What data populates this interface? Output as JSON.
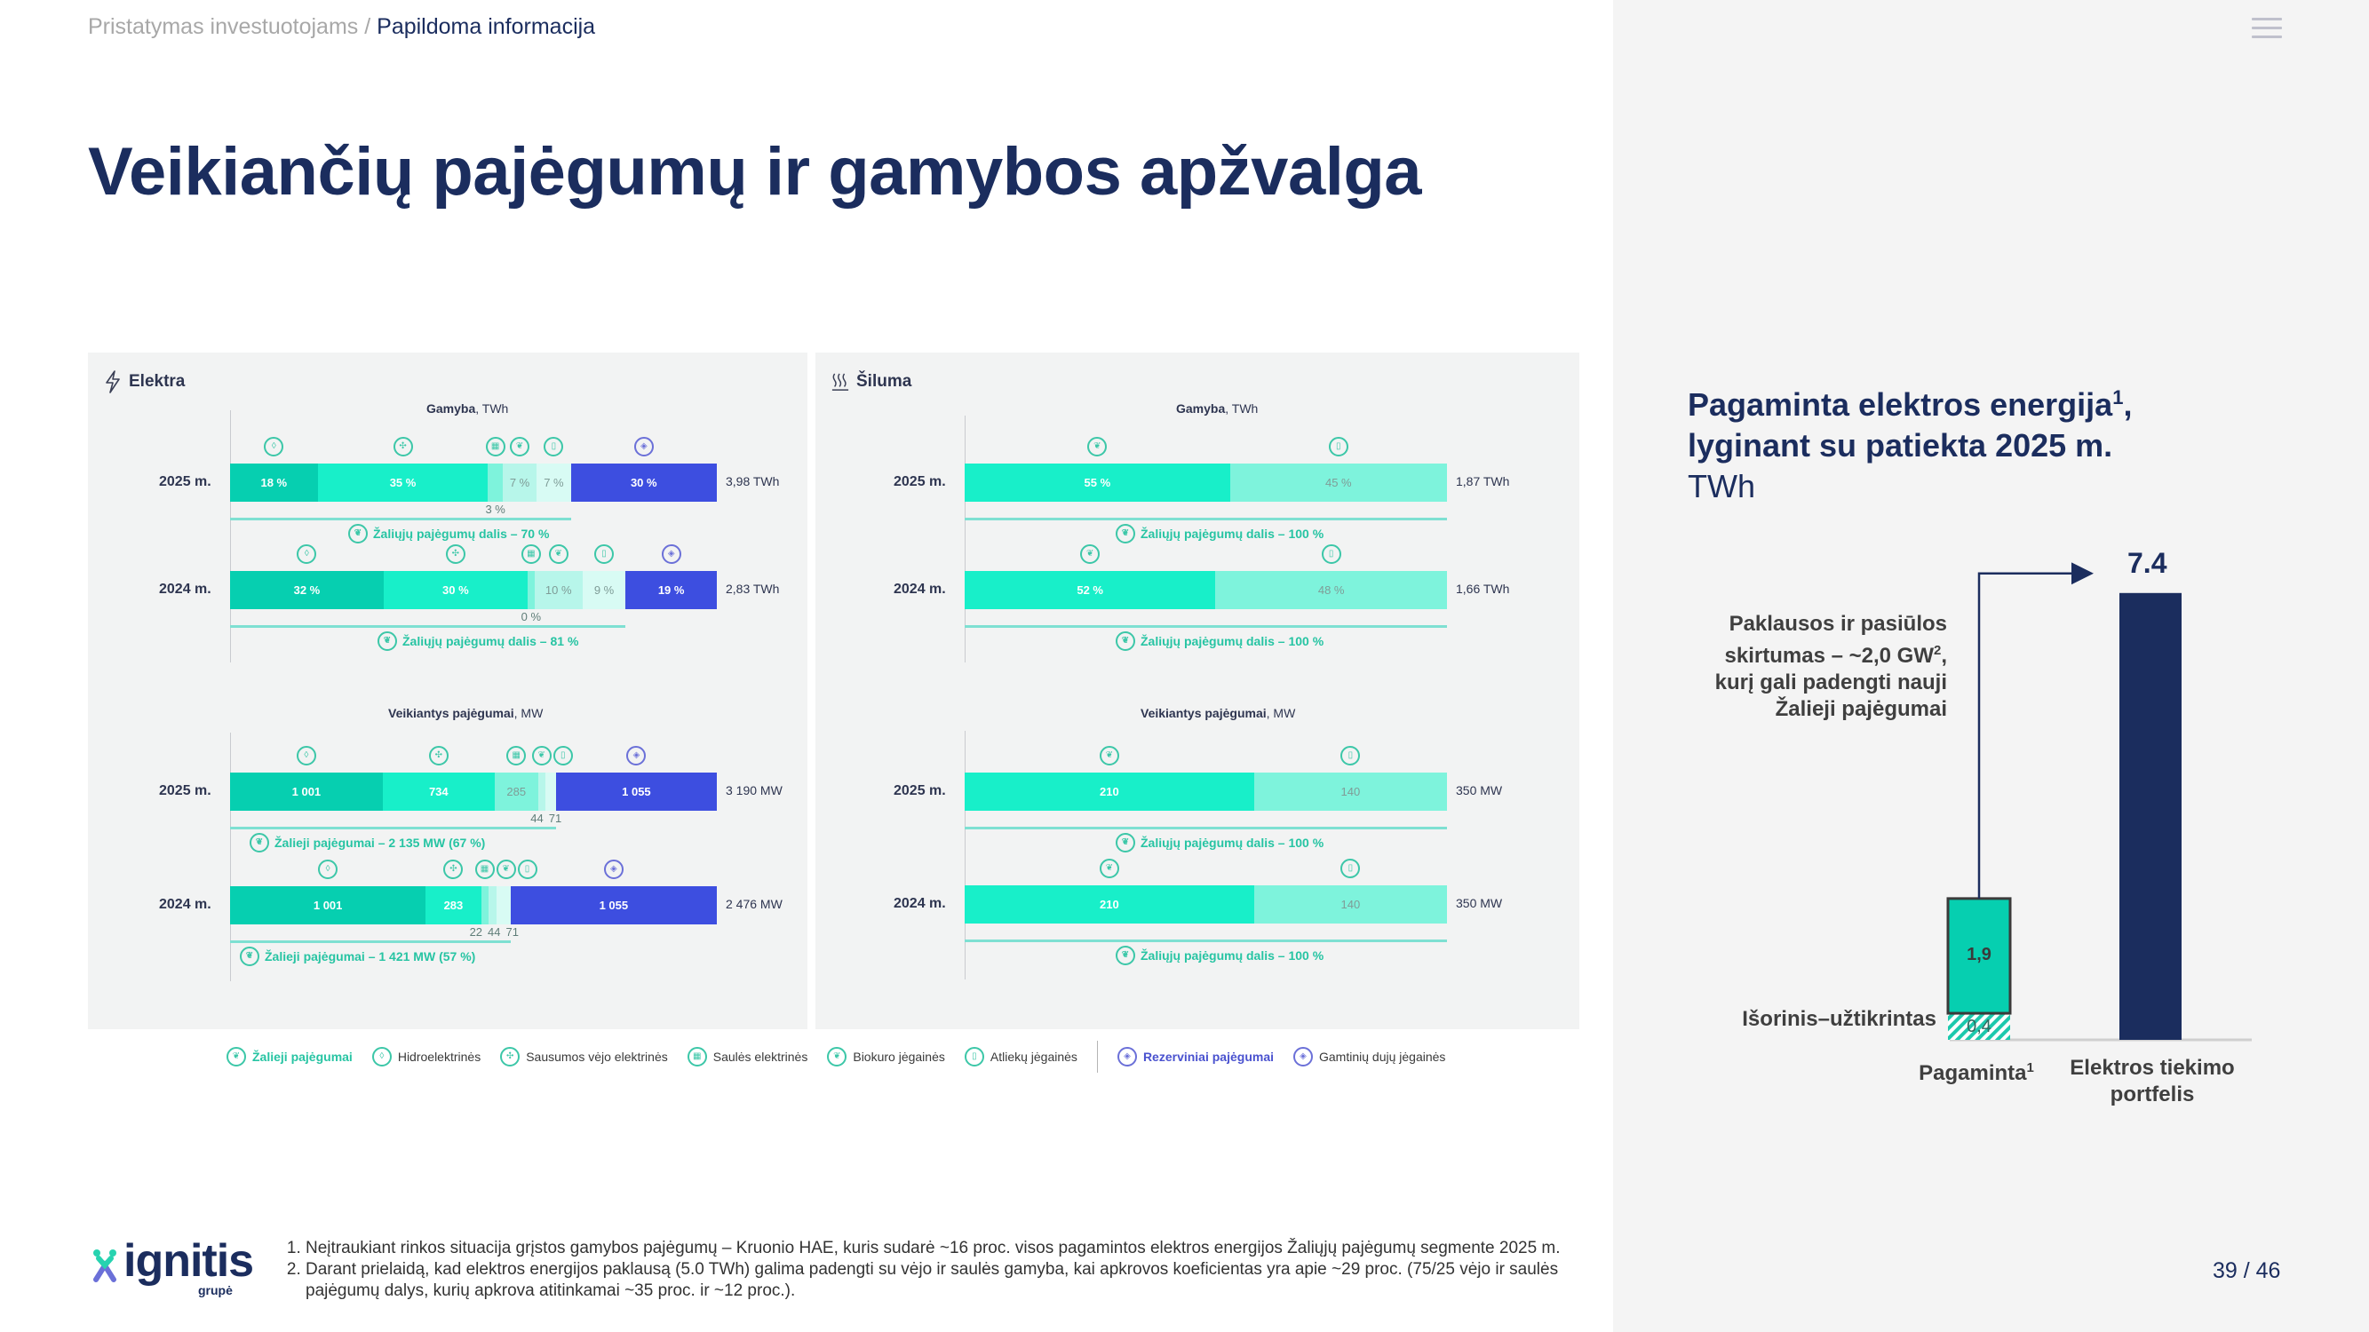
{
  "header": {
    "breadcrumb": [
      {
        "label": "Pristatymas investuotojams"
      },
      {
        "label": "Papildoma informacija"
      }
    ],
    "breadcrumb_separator": "/",
    "menu_icon": "hamburger-menu-icon"
  },
  "page_title": "Veikiančių pajėgumų ir gamybos apžvalga",
  "colors": {
    "navy": "#1b2d5e",
    "hydro": "#06cfb0",
    "wind": "#18efc9",
    "solar": "#7ef3dc",
    "biofuel": "#b7f6ea",
    "waste": "#d8fbf4",
    "gas": "#3d4ee0",
    "heat_bio": "#18efc9",
    "heat_waste": "#7ef3dc",
    "green_text": "#27c4a3"
  },
  "panels": {
    "elektra": {
      "title": "Elektra",
      "icon": "lightning-icon",
      "production": {
        "title": "Gamyba",
        "unit": ", TWh",
        "rows": [
          {
            "year": "2025 m.",
            "total": "3,98 TWh",
            "green_note": "Žaliųjų pajėgumų dalis – 70 %",
            "segments": [
              {
                "type": "hydro",
                "value": 18,
                "label": "18 %"
              },
              {
                "type": "wind",
                "value": 35,
                "label": "35 %"
              },
              {
                "type": "solar",
                "value": 3,
                "label": "3 %"
              },
              {
                "type": "biofuel",
                "value": 7,
                "label": "7 %"
              },
              {
                "type": "waste",
                "value": 7,
                "label": "7 %"
              },
              {
                "type": "gas",
                "value": 30,
                "label": "30 %"
              }
            ]
          },
          {
            "year": "2024 m.",
            "total": "2,83 TWh",
            "green_note": "Žaliųjų pajėgumų dalis – 81 %",
            "segments": [
              {
                "type": "hydro",
                "value": 32,
                "label": "32 %"
              },
              {
                "type": "wind",
                "value": 30,
                "label": "30 %"
              },
              {
                "type": "solar",
                "value": 0,
                "label": "0 %"
              },
              {
                "type": "biofuel",
                "value": 10,
                "label": "10 %"
              },
              {
                "type": "waste",
                "value": 9,
                "label": "9 %"
              },
              {
                "type": "gas",
                "value": 19,
                "label": "19 %"
              }
            ]
          }
        ]
      },
      "capacity": {
        "title": "Veikiantys pajėgumai",
        "unit": ", MW",
        "rows": [
          {
            "year": "2025 m.",
            "total": "3 190 MW",
            "green_note": "Žalieji pajėgumai – 2 135 MW (67 %)",
            "segments": [
              {
                "type": "hydro",
                "value": 1001,
                "label": "1 001"
              },
              {
                "type": "wind",
                "value": 734,
                "label": "734"
              },
              {
                "type": "solar",
                "value": 285,
                "label": "285"
              },
              {
                "type": "biofuel",
                "value": 44,
                "label": "44"
              },
              {
                "type": "waste",
                "value": 71,
                "label": "71"
              },
              {
                "type": "gas",
                "value": 1055,
                "label": "1 055"
              }
            ]
          },
          {
            "year": "2024 m.",
            "total": "2 476 MW",
            "green_note": "Žalieji pajėgumai – 1 421 MW (57 %)",
            "segments": [
              {
                "type": "hydro",
                "value": 1001,
                "label": "1 001"
              },
              {
                "type": "wind",
                "value": 283,
                "label": "283"
              },
              {
                "type": "solar",
                "value": 22,
                "label": "22"
              },
              {
                "type": "biofuel",
                "value": 44,
                "label": "44"
              },
              {
                "type": "waste",
                "value": 71,
                "label": "71"
              },
              {
                "type": "gas",
                "value": 1055,
                "label": "1 055"
              }
            ]
          }
        ]
      }
    },
    "siluma": {
      "title": "Šiluma",
      "icon": "heat-waves-icon",
      "production": {
        "title": "Gamyba",
        "unit": ", TWh",
        "rows": [
          {
            "year": "2025 m.",
            "total": "1,87 TWh",
            "green_note": "Žaliųjų pajėgumų dalis – 100 %",
            "segments": [
              {
                "type": "heat_bio",
                "value": 55,
                "label": "55 %"
              },
              {
                "type": "heat_waste",
                "value": 45,
                "label": "45 %"
              }
            ]
          },
          {
            "year": "2024 m.",
            "total": "1,66 TWh",
            "green_note": "Žaliųjų pajėgumų dalis – 100 %",
            "segments": [
              {
                "type": "heat_bio",
                "value": 52,
                "label": "52 %"
              },
              {
                "type": "heat_waste",
                "value": 48,
                "label": "48 %"
              }
            ]
          }
        ]
      },
      "capacity": {
        "title": "Veikiantys pajėgumai",
        "unit": ", MW",
        "rows": [
          {
            "year": "2025 m.",
            "total": "350 MW",
            "green_note": "Žaliųjų pajėgumų dalis – 100 %",
            "segments": [
              {
                "type": "heat_bio",
                "value": 210,
                "label": "210"
              },
              {
                "type": "heat_waste",
                "value": 140,
                "label": "140"
              }
            ]
          },
          {
            "year": "2024 m.",
            "total": "350 MW",
            "green_note": "Žaliųjų pajėgumų dalis – 100 %",
            "segments": [
              {
                "type": "heat_bio",
                "value": 210,
                "label": "210"
              },
              {
                "type": "heat_waste",
                "value": 140,
                "label": "140"
              }
            ]
          }
        ]
      }
    }
  },
  "legend": {
    "items": [
      {
        "label": "Žalieji pajėgumai",
        "icon": "leaf-icon",
        "style": "green"
      },
      {
        "label": "Hidroelektrinės",
        "icon": "water-drop-icon",
        "style": "normal"
      },
      {
        "label": "Sausumos vėjo elektrinės",
        "icon": "wind-turbine-icon",
        "style": "normal"
      },
      {
        "label": "Saulės elektrinės",
        "icon": "solar-panel-icon",
        "style": "normal"
      },
      {
        "label": "Biokuro jėgainės",
        "icon": "biofuel-icon",
        "style": "normal"
      },
      {
        "label": "Atliekų jėgainės",
        "icon": "waste-bin-icon",
        "style": "normal"
      }
    ],
    "reserve_items": [
      {
        "label": "Rezerviniai pajėgumai",
        "icon": "reserve-flame-icon",
        "style": "blue"
      },
      {
        "label": "Gamtinių dujų jėgainės",
        "icon": "gas-flame-icon",
        "style": "normal"
      }
    ]
  },
  "right_chart": {
    "title_line1": "Pagaminta elektros energija",
    "title_sup": "1",
    "title_comma": ",",
    "title_line2": "lyginant su patiekta 2025 m.",
    "unit": "TWh",
    "gap_note_line1": "Paklausos ir pasiūlos",
    "gap_note_line2": "skirtumas – ~2,0 GW",
    "gap_note_sup": "2",
    "gap_note_line2_end": ",",
    "gap_note_line3": "kurį gali padengti nauji",
    "gap_note_line4": "Žalieji pajėgumai",
    "external_label": "Išorinis–užtikrintas"
  },
  "chart_data": {
    "type": "bar",
    "title": "Pagaminta elektros energija, lyginant su patiekta 2025 m.",
    "ylabel": "TWh",
    "categories": [
      "Pagaminta",
      "Elektros tiekimo portfelis"
    ],
    "category_sups": [
      "1",
      ""
    ],
    "series": [
      {
        "name": "Išorinis–užtikrintas",
        "values": [
          0.4,
          null
        ],
        "labels": [
          "0,4",
          ""
        ]
      },
      {
        "name": "Pagaminta",
        "values": [
          1.9,
          null
        ],
        "labels": [
          "1,9",
          ""
        ]
      },
      {
        "name": "Elektros tiekimo portfelis",
        "values": [
          null,
          7.4
        ],
        "labels": [
          "",
          "7.4"
        ]
      }
    ],
    "ylim": [
      0,
      8
    ]
  },
  "footer": {
    "logo_text": "ignitis",
    "logo_sub": "grupė",
    "footnotes": [
      "Neįtraukiant rinkos situacija grįstos gamybos pajėgumų – Kruonio HAE, kuris sudarė ~16 proc. visos pagamintos elektros energijos Žaliųjų pajėgumų segmente 2025 m.",
      "Darant prielaidą, kad elektros energijos paklausą (5.0 TWh) galima padengti su vėjo ir saulės gamyba, kai apkrovos koeficientas yra apie ~29 proc. (75/25 vėjo ir saulės pajėgumų dalys, kurių apkrova atitinkamai ~35 proc. ir ~12 proc.)."
    ],
    "page_number": "39 / 46"
  }
}
